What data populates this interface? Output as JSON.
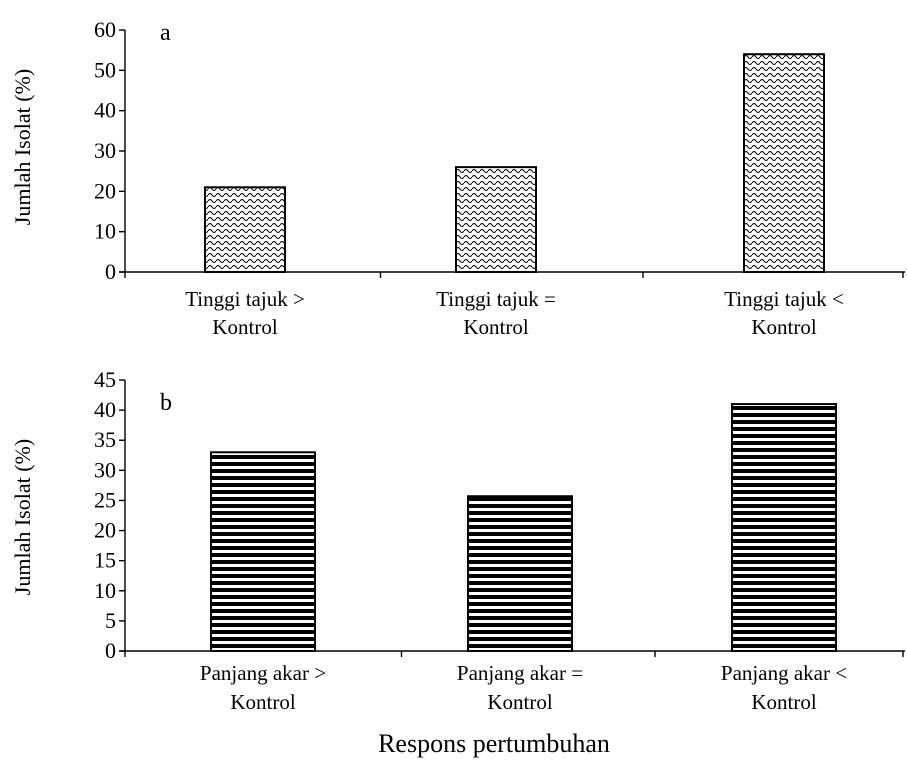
{
  "chart_data": [
    {
      "type": "bar",
      "panel_label": "a",
      "categories": [
        [
          "Tinggi tajuk >",
          "Kontrol"
        ],
        [
          "Tinggi tajuk =",
          "Kontrol"
        ],
        [
          "Tinggi tajuk <",
          "Kontrol"
        ]
      ],
      "values": [
        21,
        26,
        54
      ],
      "ylabel": "Jumlah Isolat (%)",
      "ylim": [
        0,
        60
      ],
      "yticks": [
        "0",
        "10",
        "20",
        "30",
        "40",
        "50",
        "60"
      ],
      "pattern": "wavy",
      "grid": false
    },
    {
      "type": "bar",
      "panel_label": "b",
      "categories": [
        [
          "Panjang akar >",
          "Kontrol"
        ],
        [
          "Panjang akar =",
          "Kontrol"
        ],
        [
          "Panjang akar <",
          "Kontrol"
        ]
      ],
      "values": [
        33,
        25.7,
        41
      ],
      "ylabel": "Jumlah Isolat (%)",
      "ylim": [
        0,
        45
      ],
      "yticks": [
        "0",
        "5",
        "10",
        "15",
        "20",
        "25",
        "30",
        "35",
        "40",
        "45"
      ],
      "pattern": "horizontal-stripes",
      "grid": false
    }
  ],
  "shared_xlabel": "Respons pertumbuhan",
  "colors": {
    "bar_outline": "#000000",
    "pattern_ink": "#000000",
    "background": "#ffffff"
  }
}
